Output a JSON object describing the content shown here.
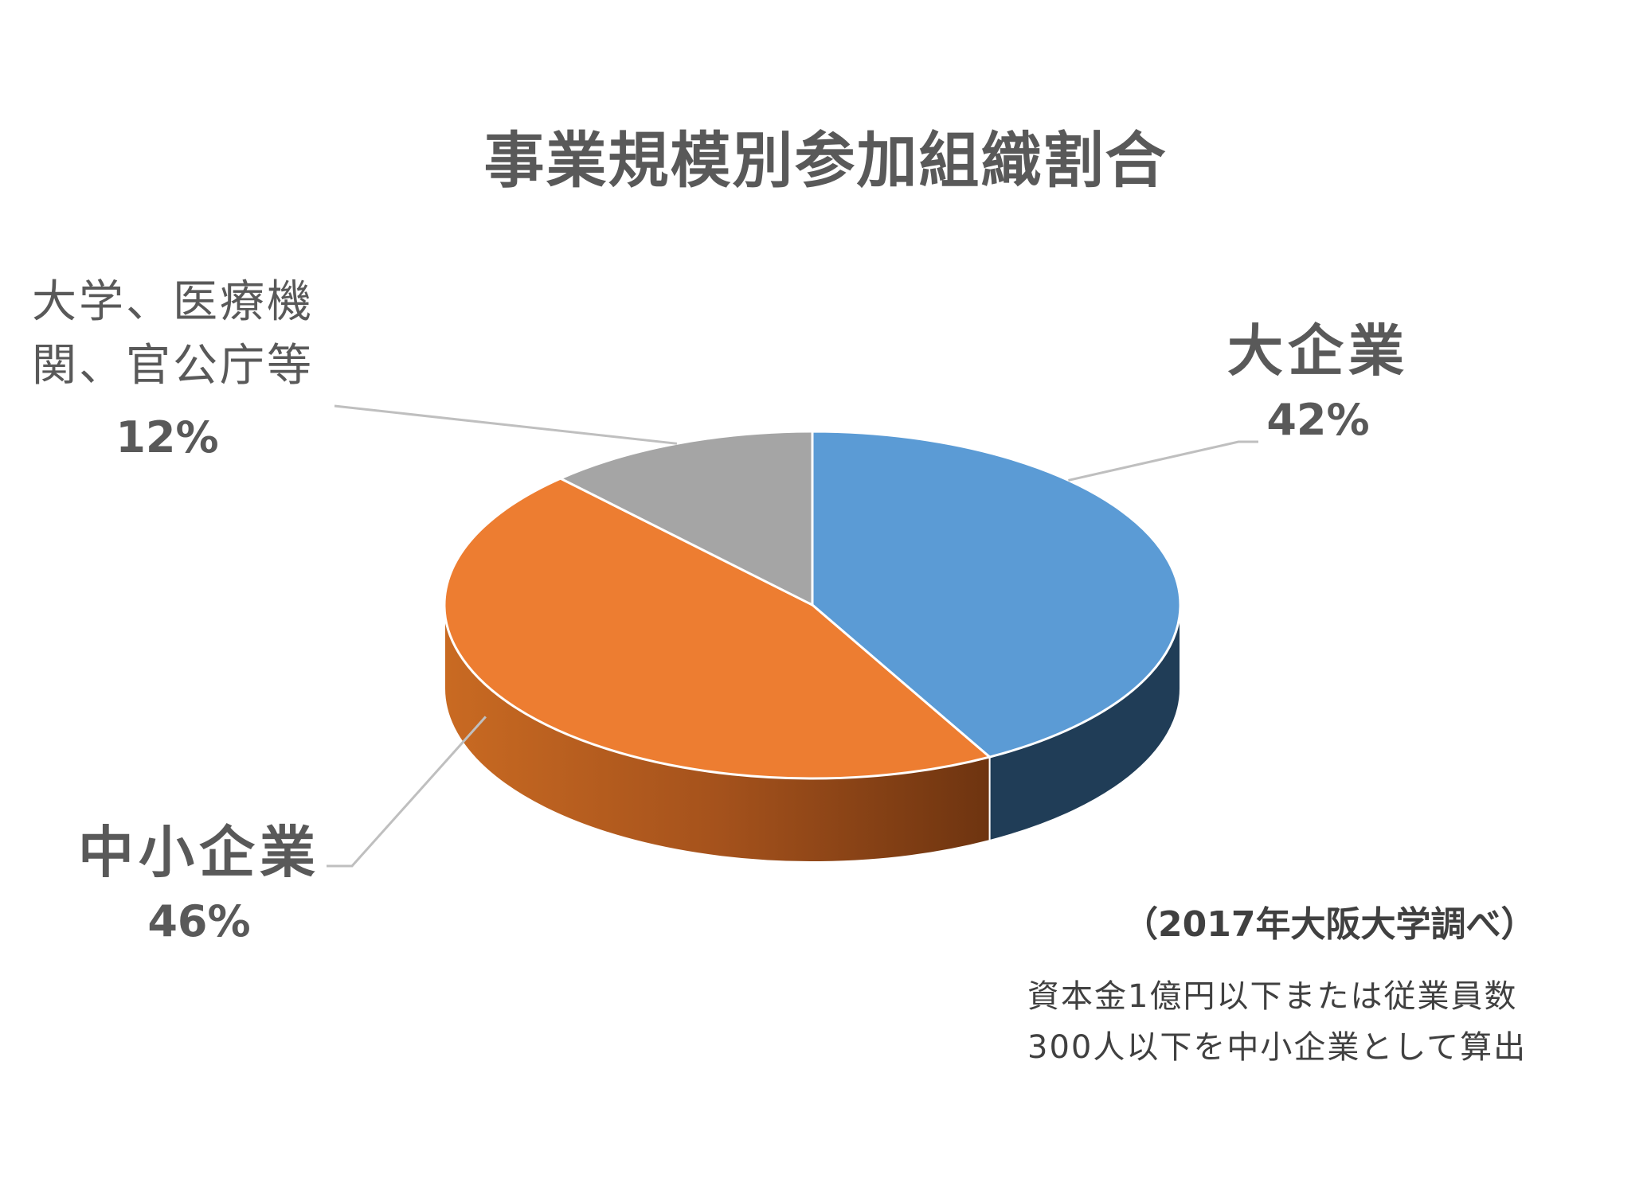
{
  "chart_data": {
    "type": "pie",
    "title": "事業規模別参加組織割合",
    "slices": [
      {
        "label": "大企業",
        "value": 42,
        "value_label": "42%",
        "color": "#5B9BD5",
        "side_color": "#203D57"
      },
      {
        "label": "中小企業",
        "value": 46,
        "value_label": "46%",
        "color": "#ED7D31",
        "side_color": "#B85A1B"
      },
      {
        "label_lines": [
          "大学、医療機",
          "関、官公庁等"
        ],
        "value": 12,
        "value_label": "12%",
        "color": "#A5A5A5",
        "side_color": "#7F7F7F"
      }
    ],
    "style": "3d"
  },
  "source": "（2017年大阪大学調べ）",
  "footnote": [
    "資本金1億円以下または従業員数",
    "300人以下を中小企業として算出"
  ]
}
